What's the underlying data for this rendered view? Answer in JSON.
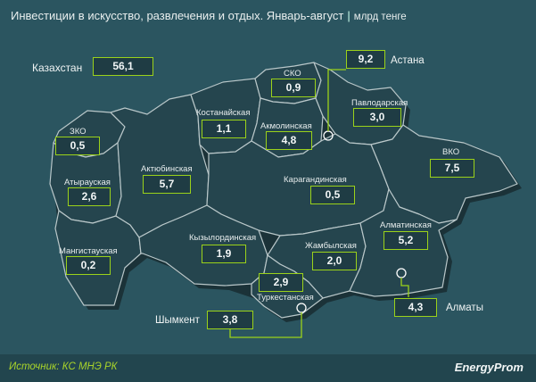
{
  "title": "Инвестиции в искусство, развлечения и отдых. Январь-август",
  "title_separator": "|",
  "unit": "млрд тенге",
  "total": {
    "label": "Казахстан",
    "value": "56,1"
  },
  "regions": [
    {
      "id": "zko",
      "label": "ЗКО",
      "value": "0,5"
    },
    {
      "id": "atyrau",
      "label": "Атырауская",
      "value": "2,6"
    },
    {
      "id": "mangistau",
      "label": "Мангистауская",
      "value": "0,2"
    },
    {
      "id": "aktobe",
      "label": "Актюбинская",
      "value": "5,7"
    },
    {
      "id": "kostanay",
      "label": "Костанайская",
      "value": "1,1"
    },
    {
      "id": "sko",
      "label": "СКО",
      "value": "0,9"
    },
    {
      "id": "akmola",
      "label": "Акмолинская",
      "value": "4,8"
    },
    {
      "id": "pavlodar",
      "label": "Павлодарская",
      "value": "3,0"
    },
    {
      "id": "vko",
      "label": "ВКО",
      "value": "7,5"
    },
    {
      "id": "karaganda",
      "label": "Карагандинская",
      "value": "0,5"
    },
    {
      "id": "kyzylorda",
      "label": "Кызылординская",
      "value": "1,9"
    },
    {
      "id": "zhambyl",
      "label": "Жамбылская",
      "value": "2,0"
    },
    {
      "id": "almaty_reg",
      "label": "Алматинская",
      "value": "5,2"
    },
    {
      "id": "turkestan",
      "label": "Туркестанская",
      "value": "2,9"
    }
  ],
  "cities": [
    {
      "id": "astana",
      "label": "Астана",
      "value": "9,2"
    },
    {
      "id": "almaty",
      "label": "Алматы",
      "value": "4,3"
    },
    {
      "id": "shymkent",
      "label": "Шымкент",
      "value": "3,8"
    }
  ],
  "source": "Источник: КС МНЭ РК",
  "logo": "EnergyProm",
  "colors": {
    "background": "#2b5560",
    "region_fill": "#25454e",
    "border": "#b9c7c9",
    "accent": "#9bd21a"
  }
}
